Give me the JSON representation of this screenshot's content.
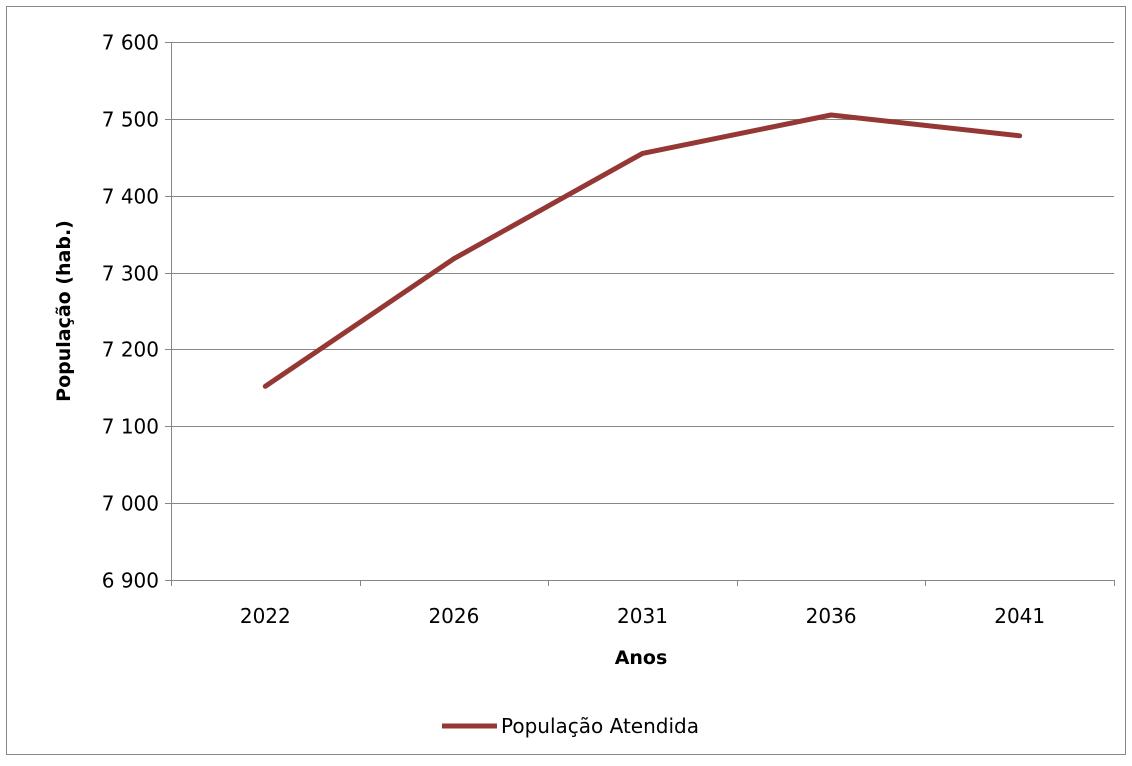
{
  "chart_data": {
    "type": "line",
    "categories": [
      "2022",
      "2026",
      "2031",
      "2036",
      "2041"
    ],
    "series": [
      {
        "name": "População Atendida",
        "values": [
          7152,
          7318,
          7455,
          7505,
          7478
        ],
        "color": "#953735"
      }
    ],
    "xlabel": "Anos",
    "ylabel": "População (hab.)",
    "ylim": [
      6900,
      7600
    ],
    "y_ticks": [
      "6 900",
      "7 000",
      "7 100",
      "7 200",
      "7 300",
      "7 400",
      "7 500",
      "7 600"
    ],
    "grid": true,
    "legend_position": "bottom",
    "axis_color": "#868686",
    "frame_color": "#868686"
  }
}
